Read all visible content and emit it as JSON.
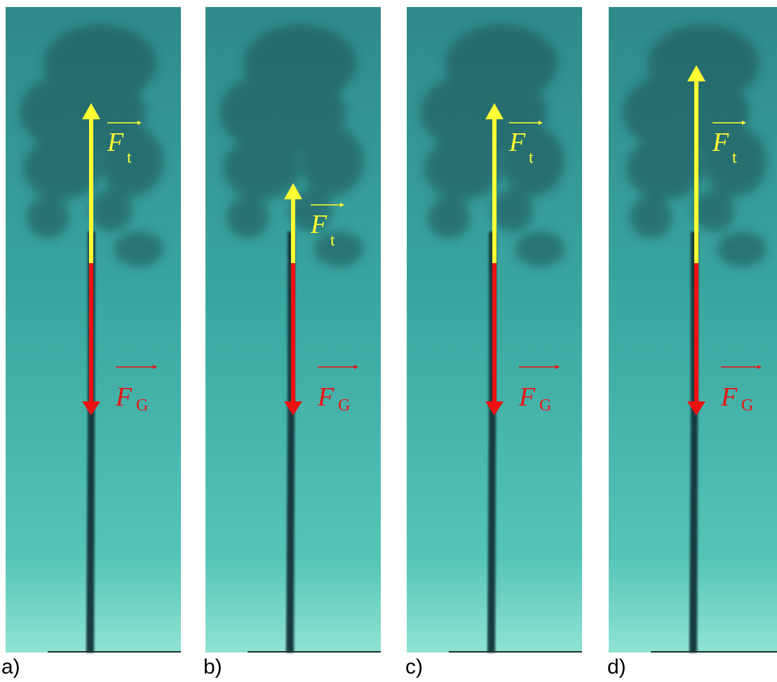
{
  "panels": [
    {
      "label": "a)",
      "forces": [
        {
          "symbol": "F",
          "subscript": "t"
        },
        {
          "symbol": "F",
          "subscript": "G"
        }
      ]
    },
    {
      "label": "b)",
      "forces": [
        {
          "symbol": "F",
          "subscript": "t"
        },
        {
          "symbol": "F",
          "subscript": "G"
        }
      ]
    },
    {
      "label": "c)",
      "forces": [
        {
          "symbol": "F",
          "subscript": "t"
        },
        {
          "symbol": "F",
          "subscript": "G"
        }
      ]
    },
    {
      "label": "d)",
      "forces": [
        {
          "symbol": "F",
          "subscript": "t"
        },
        {
          "symbol": "F",
          "subscript": "G"
        }
      ]
    }
  ]
}
